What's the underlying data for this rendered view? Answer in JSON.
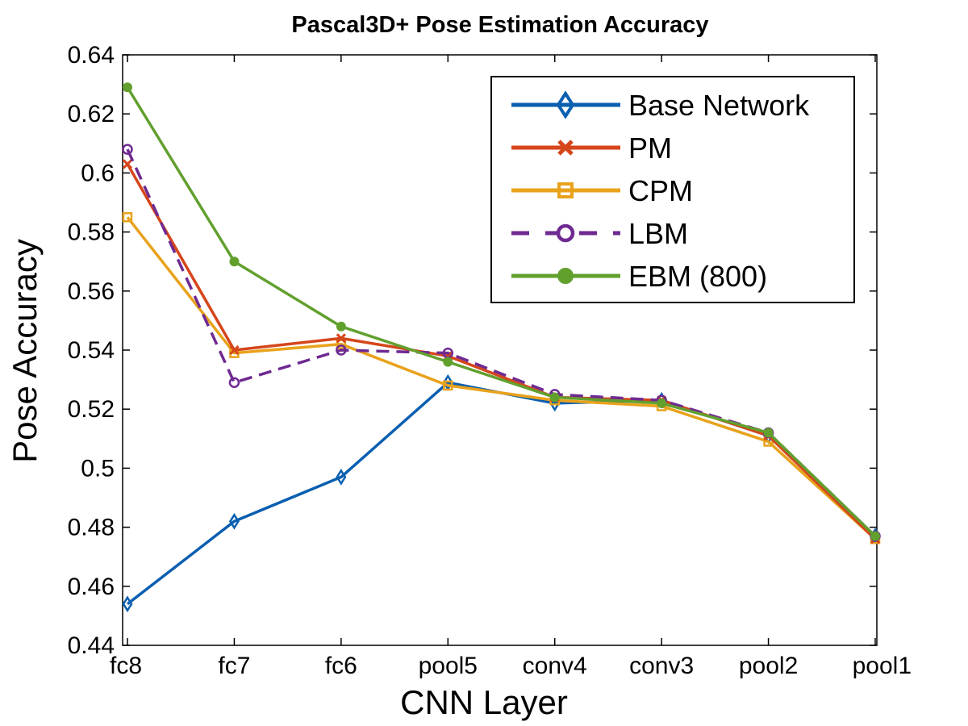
{
  "chart_data": {
    "type": "line",
    "title": "Pascal3D+ Pose Estimation Accuracy",
    "xlabel": "CNN Layer",
    "ylabel": "Pose Accuracy",
    "categories": [
      "fc8",
      "fc7",
      "fc6",
      "pool5",
      "conv4",
      "conv3",
      "pool2",
      "pool1"
    ],
    "ylim": [
      0.44,
      0.64
    ],
    "yticks": [
      0.44,
      0.46,
      0.48,
      0.5,
      0.52,
      0.54,
      0.56,
      0.58,
      0.6,
      0.62,
      0.64
    ],
    "ytick_labels": [
      "0.44",
      "0.46",
      "0.48",
      "0.5",
      "0.52",
      "0.54",
      "0.56",
      "0.58",
      "0.6",
      "0.62",
      "0.64"
    ],
    "grid": false,
    "legend_position": "top-right",
    "series": [
      {
        "name": "Base Network",
        "color": "#0a5fb0",
        "marker": "diamond",
        "dash": "solid",
        "values": [
          0.454,
          0.482,
          0.497,
          0.529,
          0.522,
          0.523,
          0.511,
          0.477
        ]
      },
      {
        "name": "PM",
        "color": "#d5461b",
        "marker": "x",
        "dash": "solid",
        "values": [
          0.603,
          0.54,
          0.544,
          0.538,
          0.524,
          0.523,
          0.511,
          0.476
        ]
      },
      {
        "name": "CPM",
        "color": "#e8a21b",
        "marker": "square",
        "dash": "solid",
        "values": [
          0.585,
          0.539,
          0.542,
          0.528,
          0.523,
          0.521,
          0.509,
          0.476
        ]
      },
      {
        "name": "LBM",
        "color": "#6f2a92",
        "marker": "circle-open",
        "dash": "dashed",
        "values": [
          0.608,
          0.529,
          0.54,
          0.539,
          0.525,
          0.523,
          0.512,
          0.477
        ]
      },
      {
        "name": "EBM (800)",
        "color": "#62a02e",
        "marker": "circle-filled",
        "dash": "solid",
        "values": [
          0.629,
          0.57,
          0.548,
          0.536,
          0.524,
          0.522,
          0.512,
          0.477
        ]
      }
    ]
  }
}
